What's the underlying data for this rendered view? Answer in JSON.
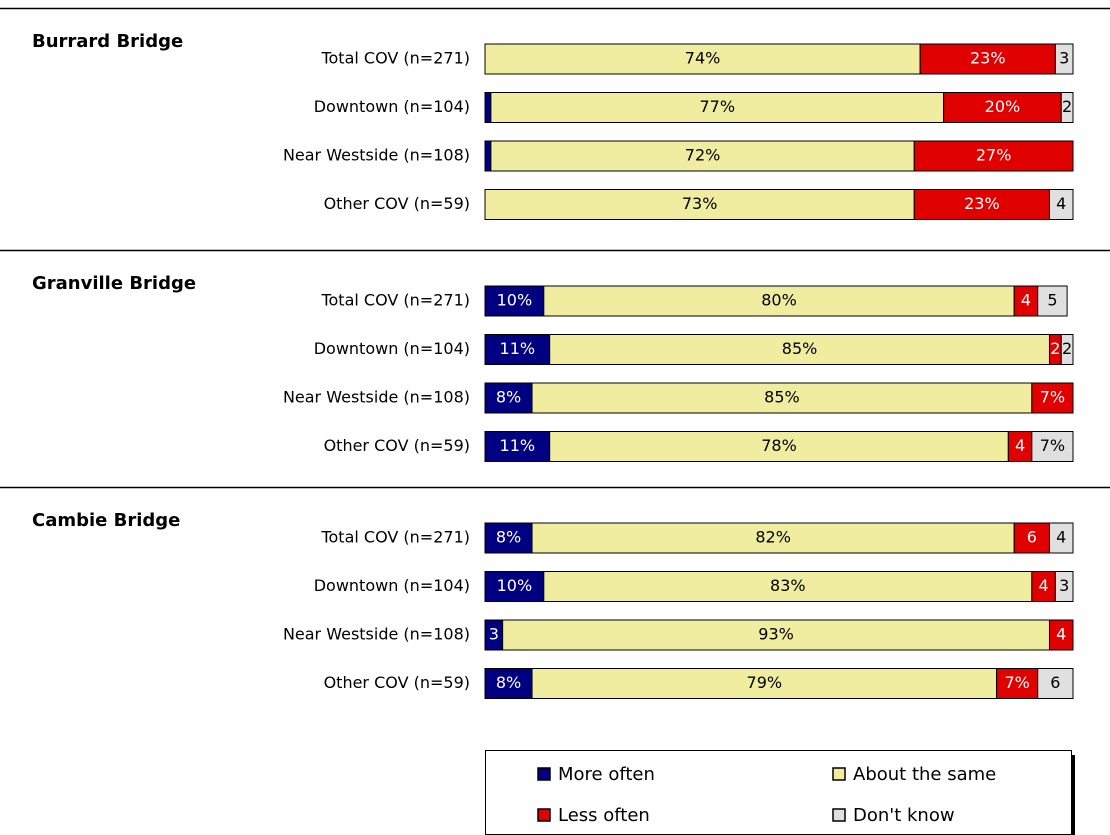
{
  "chart_data": {
    "type": "stacked_bar",
    "orientation": "horizontal",
    "xlim": [
      0,
      100
    ],
    "series": [
      {
        "name": "More often",
        "color": "#000080"
      },
      {
        "name": "About the same",
        "color": "#f0eca0"
      },
      {
        "name": "Less often",
        "color": "#e00000"
      },
      {
        "name": "Don't know",
        "color": "#e0e0e0"
      }
    ],
    "panels": [
      {
        "title": "Burrard Bridge",
        "categories": [
          "Total COV (n=271)",
          "Downtown (n=104)",
          "Near Westside (n=108)",
          "Other COV (n=59)"
        ],
        "series": [
          {
            "values": [
              0,
              1,
              1,
              0
            ],
            "value_labels": [
              null,
              null,
              null,
              null
            ]
          },
          {
            "values": [
              74,
              77,
              72,
              73
            ],
            "value_labels": [
              "74%",
              "77%",
              "72%",
              "73%"
            ]
          },
          {
            "values": [
              23,
              20,
              27,
              23
            ],
            "value_labels": [
              "23%",
              "20%",
              "27%",
              "23%"
            ]
          },
          {
            "values": [
              3,
              2,
              0,
              4
            ],
            "value_labels": [
              "3",
              "2",
              null,
              "4"
            ]
          }
        ]
      },
      {
        "title": "Granville Bridge",
        "categories": [
          "Total COV (n=271)",
          "Downtown (n=104)",
          "Near Westside (n=108)",
          "Other COV (n=59)"
        ],
        "series": [
          {
            "values": [
              10,
              11,
              8,
              11
            ],
            "value_labels": [
              "10%",
              "11%",
              "8%",
              "11%"
            ]
          },
          {
            "values": [
              80,
              85,
              85,
              78
            ],
            "value_labels": [
              "80%",
              "85%",
              "85%",
              "78%"
            ]
          },
          {
            "values": [
              4,
              2,
              7,
              4
            ],
            "value_labels": [
              "4",
              "2",
              "7%",
              "4"
            ]
          },
          {
            "values": [
              5,
              2,
              0,
              7
            ],
            "value_labels": [
              "5",
              "2",
              null,
              "7%"
            ]
          }
        ]
      },
      {
        "title": "Cambie Bridge",
        "categories": [
          "Total COV (n=271)",
          "Downtown (n=104)",
          "Near Westside (n=108)",
          "Other COV (n=59)"
        ],
        "series": [
          {
            "values": [
              8,
              10,
              3,
              8
            ],
            "value_labels": [
              "8%",
              "10%",
              "3",
              "8%"
            ]
          },
          {
            "values": [
              82,
              83,
              93,
              79
            ],
            "value_labels": [
              "82%",
              "83%",
              "93%",
              "79%"
            ]
          },
          {
            "values": [
              6,
              4,
              4,
              7
            ],
            "value_labels": [
              "6",
              "4",
              "4",
              "7%"
            ]
          },
          {
            "values": [
              4,
              3,
              0,
              6
            ],
            "value_labels": [
              "4",
              "3",
              null,
              "6"
            ]
          }
        ]
      }
    ]
  }
}
